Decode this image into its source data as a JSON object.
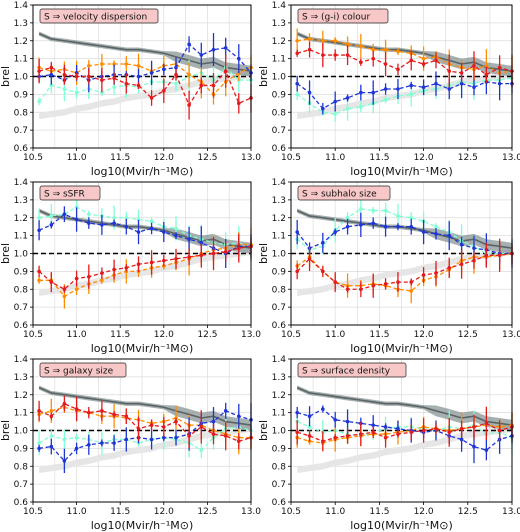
{
  "figure": {
    "xlabel": "log10(Mvir/h⁻¹M⊙)",
    "ylabel": "brel",
    "xlim": [
      10.5,
      13.0
    ],
    "ylim": [
      0.6,
      1.4
    ],
    "xticks": [
      "10.5",
      "11.0",
      "11.5",
      "12.0",
      "12.5",
      "13.0"
    ],
    "yticks": [
      "0.6",
      "0.7",
      "0.8",
      "0.9",
      "1.0",
      "1.1",
      "1.2",
      "1.3",
      "1.4"
    ],
    "colors": {
      "red": "#e41a1c",
      "orange": "#ff8c00",
      "blue": "#1f35d6",
      "cyan": "#7fffd4",
      "dark_band": "#8a9696",
      "dark_line": "#5a6464",
      "light_band": "#e6e6e6",
      "label_box": "#f8c8c8"
    }
  },
  "chart_data": [
    {
      "type": "line",
      "panel_label": "S ⇒ velocity dispersion",
      "grid": true,
      "x": [
        10.57,
        10.71,
        10.86,
        11.0,
        11.14,
        11.29,
        11.43,
        11.57,
        11.71,
        11.86,
        12.0,
        12.14,
        12.29,
        12.43,
        12.57,
        12.71,
        12.86,
        13.0
      ],
      "series": [
        {
          "color": "dark",
          "values": [
            1.24,
            1.21,
            1.2,
            1.19,
            1.18,
            1.17,
            1.16,
            1.15,
            1.15,
            1.14,
            1.13,
            1.11,
            1.09,
            1.07,
            1.08,
            1.05,
            1.04,
            1.03
          ]
        },
        {
          "color": "light",
          "values": [
            0.78,
            0.79,
            0.8,
            0.82,
            0.83,
            0.85,
            0.86,
            0.88,
            0.89,
            0.9,
            0.92,
            0.93,
            0.95,
            0.97,
            0.98,
            0.99,
            1.0,
            1.01
          ]
        },
        {
          "color": "red",
          "values": [
            1.03,
            1.05,
            1.01,
            1.0,
            1.0,
            0.98,
            0.99,
            0.96,
            0.95,
            0.88,
            0.92,
            1.01,
            0.84,
            0.95,
            0.95,
            1.03,
            0.85,
            0.88
          ]
        },
        {
          "color": "orange",
          "values": [
            1.05,
            1.03,
            1.04,
            1.02,
            1.06,
            1.07,
            1.07,
            1.07,
            1.06,
            1.03,
            1.06,
            1.07,
            1.01,
            0.97,
            0.9,
            0.97,
            1.02,
            1.05
          ]
        },
        {
          "color": "blue",
          "values": [
            1.0,
            1.01,
            0.98,
            1.02,
            0.98,
            1.0,
            1.01,
            1.01,
            1.0,
            1.02,
            1.04,
            1.05,
            1.18,
            1.12,
            1.15,
            1.16,
            1.1,
            1.02
          ]
        },
        {
          "color": "cyan",
          "values": [
            0.86,
            0.95,
            0.93,
            0.91,
            0.93,
            0.91,
            0.94,
            0.95,
            0.94,
            0.97,
            0.97,
            0.96,
            1.0,
            1.02,
            0.98,
            1.05,
            0.98,
            0.98
          ]
        }
      ]
    },
    {
      "type": "line",
      "panel_label": "S ⇒ (g-i) colour",
      "grid": true,
      "x": [
        10.57,
        10.71,
        10.86,
        11.0,
        11.14,
        11.29,
        11.43,
        11.57,
        11.71,
        11.86,
        12.0,
        12.14,
        12.29,
        12.43,
        12.57,
        12.71,
        12.86,
        13.0
      ],
      "series": [
        {
          "color": "dark",
          "values": [
            1.24,
            1.21,
            1.2,
            1.19,
            1.18,
            1.17,
            1.16,
            1.15,
            1.15,
            1.14,
            1.13,
            1.11,
            1.09,
            1.07,
            1.08,
            1.05,
            1.04,
            1.03
          ]
        },
        {
          "color": "light",
          "values": [
            0.78,
            0.79,
            0.8,
            0.82,
            0.83,
            0.85,
            0.86,
            0.88,
            0.89,
            0.9,
            0.92,
            0.93,
            0.95,
            0.97,
            0.98,
            0.99,
            1.0,
            1.01
          ]
        },
        {
          "color": "red",
          "values": [
            1.13,
            1.15,
            1.12,
            1.12,
            1.12,
            1.08,
            1.1,
            1.07,
            1.04,
            1.09,
            1.07,
            1.09,
            1.03,
            1.02,
            1.06,
            1.01,
            1.05,
            1.03
          ]
        },
        {
          "color": "orange",
          "values": [
            1.2,
            1.21,
            1.2,
            1.2,
            1.18,
            1.17,
            1.15,
            1.15,
            1.14,
            1.13,
            1.1,
            1.11,
            1.07,
            1.05,
            1.04,
            1.06,
            1.02,
            1.03
          ]
        },
        {
          "color": "blue",
          "values": [
            0.96,
            0.91,
            0.82,
            0.86,
            0.88,
            0.91,
            0.91,
            0.93,
            0.93,
            0.95,
            0.94,
            0.96,
            0.93,
            0.96,
            0.94,
            0.97,
            0.96,
            0.96
          ]
        },
        {
          "color": "cyan",
          "values": [
            0.9,
            0.85,
            0.8,
            0.79,
            0.82,
            0.83,
            0.85,
            0.87,
            0.89,
            0.9,
            0.92,
            0.93,
            0.95,
            0.97,
            0.96,
            0.98,
            0.98,
            0.99
          ]
        }
      ]
    },
    {
      "type": "line",
      "panel_label": "S ⇒ sSFR",
      "grid": true,
      "x": [
        10.57,
        10.71,
        10.86,
        11.0,
        11.14,
        11.29,
        11.43,
        11.57,
        11.71,
        11.86,
        12.0,
        12.14,
        12.29,
        12.43,
        12.57,
        12.71,
        12.86,
        13.0
      ],
      "series": [
        {
          "color": "dark",
          "values": [
            1.24,
            1.21,
            1.2,
            1.19,
            1.18,
            1.17,
            1.16,
            1.15,
            1.15,
            1.14,
            1.13,
            1.11,
            1.09,
            1.07,
            1.08,
            1.05,
            1.04,
            1.03
          ]
        },
        {
          "color": "light",
          "values": [
            0.78,
            0.79,
            0.8,
            0.82,
            0.83,
            0.85,
            0.86,
            0.88,
            0.89,
            0.9,
            0.92,
            0.93,
            0.95,
            0.97,
            0.98,
            0.99,
            1.0,
            1.01
          ]
        },
        {
          "color": "red",
          "values": [
            0.9,
            0.84,
            0.8,
            0.86,
            0.87,
            0.89,
            0.91,
            0.92,
            0.94,
            0.95,
            0.96,
            0.97,
            0.98,
            0.99,
            1.0,
            1.01,
            1.03,
            1.04
          ]
        },
        {
          "color": "orange",
          "values": [
            0.85,
            0.85,
            0.76,
            0.8,
            0.83,
            0.85,
            0.88,
            0.9,
            0.9,
            0.92,
            0.93,
            0.95,
            0.97,
            1.0,
            1.02,
            1.03,
            1.05,
            1.05
          ]
        },
        {
          "color": "blue",
          "values": [
            1.13,
            1.16,
            1.22,
            1.19,
            1.17,
            1.16,
            1.17,
            1.15,
            1.12,
            1.14,
            1.12,
            1.1,
            1.08,
            1.06,
            1.03,
            1.0,
            1.04,
            1.04
          ]
        },
        {
          "color": "cyan",
          "values": [
            1.2,
            1.21,
            1.22,
            1.26,
            1.22,
            1.21,
            1.2,
            1.2,
            1.19,
            1.18,
            1.15,
            1.14,
            1.1,
            1.08,
            1.06,
            1.05,
            1.06,
            1.04
          ]
        }
      ]
    },
    {
      "type": "line",
      "panel_label": "S ⇒ subhalo size",
      "grid": true,
      "x": [
        10.57,
        10.71,
        10.86,
        11.0,
        11.14,
        11.29,
        11.43,
        11.57,
        11.71,
        11.86,
        12.0,
        12.14,
        12.29,
        12.43,
        12.57,
        12.71,
        12.86,
        13.0
      ],
      "series": [
        {
          "color": "dark",
          "values": [
            1.24,
            1.21,
            1.2,
            1.19,
            1.18,
            1.17,
            1.16,
            1.15,
            1.15,
            1.14,
            1.13,
            1.11,
            1.09,
            1.07,
            1.08,
            1.05,
            1.04,
            1.03
          ]
        },
        {
          "color": "light",
          "values": [
            0.78,
            0.79,
            0.8,
            0.82,
            0.83,
            0.85,
            0.86,
            0.88,
            0.89,
            0.9,
            0.92,
            0.93,
            0.95,
            0.97,
            0.98,
            0.99,
            1.0,
            1.01
          ]
        },
        {
          "color": "red",
          "values": [
            0.9,
            0.97,
            0.9,
            0.84,
            0.8,
            0.8,
            0.82,
            0.83,
            0.84,
            0.84,
            0.88,
            0.89,
            0.92,
            0.94,
            0.96,
            0.99,
            0.99,
            1.0
          ]
        },
        {
          "color": "orange",
          "values": [
            0.93,
            0.98,
            0.9,
            0.84,
            0.82,
            0.82,
            0.83,
            0.82,
            0.8,
            0.79,
            0.85,
            0.87,
            0.91,
            0.96,
            0.98,
            0.98,
            0.99,
            1.0
          ]
        },
        {
          "color": "blue",
          "values": [
            1.12,
            1.03,
            1.06,
            1.12,
            1.15,
            1.16,
            1.17,
            1.15,
            1.15,
            1.15,
            1.12,
            1.11,
            1.1,
            1.05,
            1.03,
            1.02,
            1.0,
            1.0
          ]
        },
        {
          "color": "cyan",
          "values": [
            1.08,
            1.02,
            1.04,
            1.13,
            1.2,
            1.25,
            1.24,
            1.24,
            1.21,
            1.2,
            1.18,
            1.15,
            1.12,
            1.07,
            1.04,
            1.0,
            1.0,
            1.0
          ]
        }
      ]
    },
    {
      "type": "line",
      "panel_label": "S ⇒ galaxy size",
      "grid": true,
      "x": [
        10.57,
        10.71,
        10.86,
        11.0,
        11.14,
        11.29,
        11.43,
        11.57,
        11.71,
        11.86,
        12.0,
        12.14,
        12.29,
        12.43,
        12.57,
        12.71,
        12.86,
        13.0
      ],
      "series": [
        {
          "color": "dark",
          "values": [
            1.24,
            1.21,
            1.2,
            1.19,
            1.18,
            1.17,
            1.16,
            1.15,
            1.15,
            1.14,
            1.13,
            1.11,
            1.09,
            1.07,
            1.08,
            1.05,
            1.04,
            1.03
          ]
        },
        {
          "color": "light",
          "values": [
            0.78,
            0.79,
            0.8,
            0.82,
            0.83,
            0.85,
            0.86,
            0.88,
            0.89,
            0.9,
            0.92,
            0.93,
            0.95,
            0.97,
            0.98,
            0.99,
            1.0,
            1.01
          ]
        },
        {
          "color": "red",
          "values": [
            1.11,
            1.08,
            1.15,
            1.12,
            1.1,
            1.11,
            1.09,
            1.08,
            1.01,
            1.03,
            1.02,
            1.05,
            0.97,
            1.02,
            0.98,
            0.97,
            0.94,
            0.96
          ]
        },
        {
          "color": "orange",
          "values": [
            1.09,
            1.11,
            1.13,
            1.11,
            1.1,
            1.08,
            1.08,
            1.07,
            1.06,
            1.04,
            1.05,
            1.07,
            1.03,
            1.03,
            1.0,
            0.98,
            0.96,
            0.96
          ]
        },
        {
          "color": "blue",
          "values": [
            0.9,
            0.91,
            0.83,
            0.9,
            0.92,
            0.93,
            0.93,
            0.95,
            0.96,
            0.95,
            0.96,
            0.96,
            0.98,
            1.04,
            1.05,
            1.11,
            1.08,
            1.06
          ]
        },
        {
          "color": "cyan",
          "values": [
            0.93,
            0.97,
            0.95,
            0.96,
            0.95,
            0.93,
            0.95,
            0.95,
            0.93,
            0.95,
            0.96,
            0.95,
            0.93,
            0.89,
            0.96,
            1.01,
            1.02,
            1.0
          ]
        }
      ]
    },
    {
      "type": "line",
      "panel_label": "S ⇒ surface density",
      "grid": true,
      "x": [
        10.57,
        10.71,
        10.86,
        11.0,
        11.14,
        11.29,
        11.43,
        11.57,
        11.71,
        11.86,
        12.0,
        12.14,
        12.29,
        12.43,
        12.57,
        12.71,
        12.86,
        13.0
      ],
      "series": [
        {
          "color": "dark",
          "values": [
            1.24,
            1.21,
            1.2,
            1.19,
            1.18,
            1.17,
            1.16,
            1.15,
            1.15,
            1.14,
            1.13,
            1.11,
            1.09,
            1.07,
            1.08,
            1.05,
            1.04,
            1.03
          ]
        },
        {
          "color": "light",
          "values": [
            0.78,
            0.79,
            0.8,
            0.82,
            0.83,
            0.85,
            0.86,
            0.88,
            0.89,
            0.9,
            0.92,
            0.93,
            0.95,
            0.97,
            0.98,
            0.99,
            1.0,
            1.01
          ]
        },
        {
          "color": "red",
          "values": [
            0.99,
            0.97,
            0.94,
            0.96,
            0.97,
            0.98,
            0.99,
            0.96,
            0.98,
            0.99,
            1.0,
            1.01,
            0.99,
            1.01,
            1.02,
            1.04,
            1.0,
            1.02
          ]
        },
        {
          "color": "orange",
          "values": [
            0.96,
            0.94,
            0.93,
            0.95,
            0.96,
            0.97,
            0.98,
            0.98,
            0.99,
            1.0,
            1.02,
            1.01,
            1.0,
            1.01,
            1.02,
            1.03,
            1.02,
            1.03
          ]
        },
        {
          "color": "blue",
          "values": [
            1.1,
            1.08,
            1.12,
            1.06,
            1.05,
            1.04,
            1.03,
            1.02,
            1.01,
            1.0,
            0.99,
            1.0,
            0.97,
            0.95,
            0.91,
            0.89,
            0.95,
            0.97
          ]
        },
        {
          "color": "cyan",
          "values": [
            1.05,
            1.02,
            0.99,
            1.0,
            0.98,
            0.97,
            0.99,
            1.01,
            1.02,
            1.02,
            1.01,
            1.0,
            1.02,
            1.01,
            1.03,
            0.98,
            0.99,
            0.96
          ]
        }
      ]
    }
  ]
}
